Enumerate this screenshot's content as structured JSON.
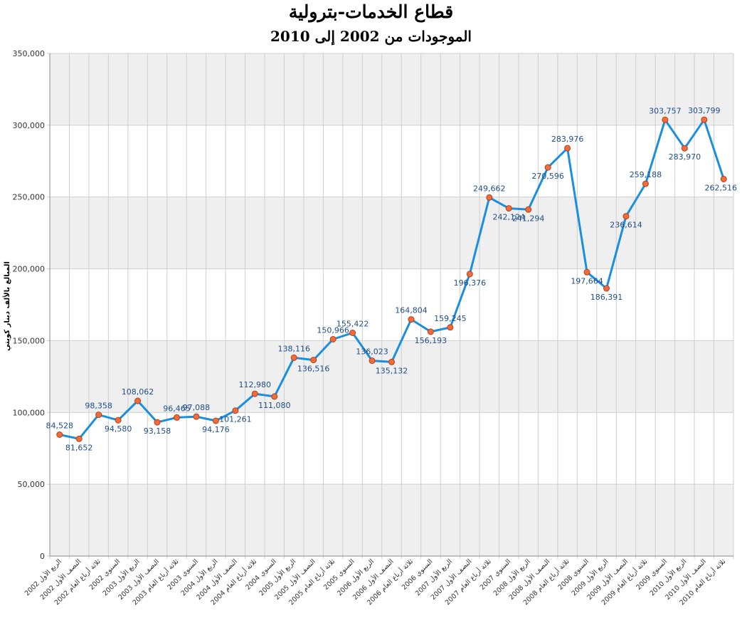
{
  "chart_data": {
    "type": "line",
    "title": "قطاع الخدمات-بترولية",
    "subtitle": "الموجودات من 2002 إلى 2010",
    "ylabel": "المبالغ بالألف دينار كويتي",
    "xlabel": "",
    "ylim": [
      0,
      350000
    ],
    "yticks": [
      0,
      50000,
      100000,
      150000,
      200000,
      250000,
      300000,
      350000
    ],
    "ytick_labels": [
      "0",
      "50,000",
      "100,000",
      "150,000",
      "200,000",
      "250,000",
      "300,000",
      "350,000"
    ],
    "grid": true,
    "categories": [
      "الربع الأول 2002",
      "النصف الأول 2002",
      "ثلاثة أرباع العام 2002",
      "السنوي 2002",
      "الربع الأول 2003",
      "النصف الأول 2003",
      "ثلاثة أرباع العام 2003",
      "السنوي 2003",
      "الربع الأول 2004",
      "النصف الأول 2004",
      "ثلاثة أرباع العام 2004",
      "السنوي 2004",
      "الربع الأول 2005",
      "النصف الأول 2005",
      "ثلاثة أرباع العام 2005",
      "السنوي 2005",
      "الربع الأول 2006",
      "النصف الأول 2006",
      "ثلاثة أرباع العام 2006",
      "السنوي 2006",
      "الربع الأول 2007",
      "النصف الأول 2007",
      "ثلاثة أرباع العام 2007",
      "السنوي 2007",
      "الربع الأول 2008",
      "النصف الأول 2008",
      "ثلاثة أرباع العام 2008",
      "السنوي 2008",
      "الربع الأول 2009",
      "النصف الأول 2009",
      "ثلاثة أرباع العام 2009",
      "السنوي 2009",
      "الربع الأول 2010",
      "النصف الأول 2010",
      "ثلاثة أرباع العام 2010"
    ],
    "values": [
      84528,
      81652,
      98358,
      94580,
      108062,
      93158,
      96465,
      97088,
      94176,
      101261,
      112980,
      111080,
      138116,
      136516,
      150966,
      155422,
      136023,
      135132,
      164804,
      156193,
      159245,
      196376,
      249662,
      242124,
      241294,
      270596,
      283976,
      197664,
      186391,
      236614,
      259188,
      303757,
      283970,
      303799,
      262516
    ],
    "value_labels": [
      "84,528",
      "81,652",
      "98,358",
      "94,580",
      "108,062",
      "93,158",
      "96,465",
      "97,088",
      "94,176",
      "101,261",
      "112,980",
      "111,080",
      "138,116",
      "136,516",
      "150,966",
      "155,422",
      "136,023",
      "135,132",
      "164,804",
      "156,193",
      "159,245",
      "196,376",
      "249,662",
      "242,124",
      "241,294",
      "270,596",
      "283,976",
      "197,664",
      "186,391",
      "236,614",
      "259,188",
      "303,757",
      "283,970",
      "303,799",
      "262,516"
    ],
    "colors": {
      "line": "#1a8fe0",
      "marker_fill": "#f26b3a",
      "marker_stroke": "#b5401a",
      "band": "#efefef",
      "grid": "#cfcfcf",
      "label": "#1f4e8a"
    }
  }
}
